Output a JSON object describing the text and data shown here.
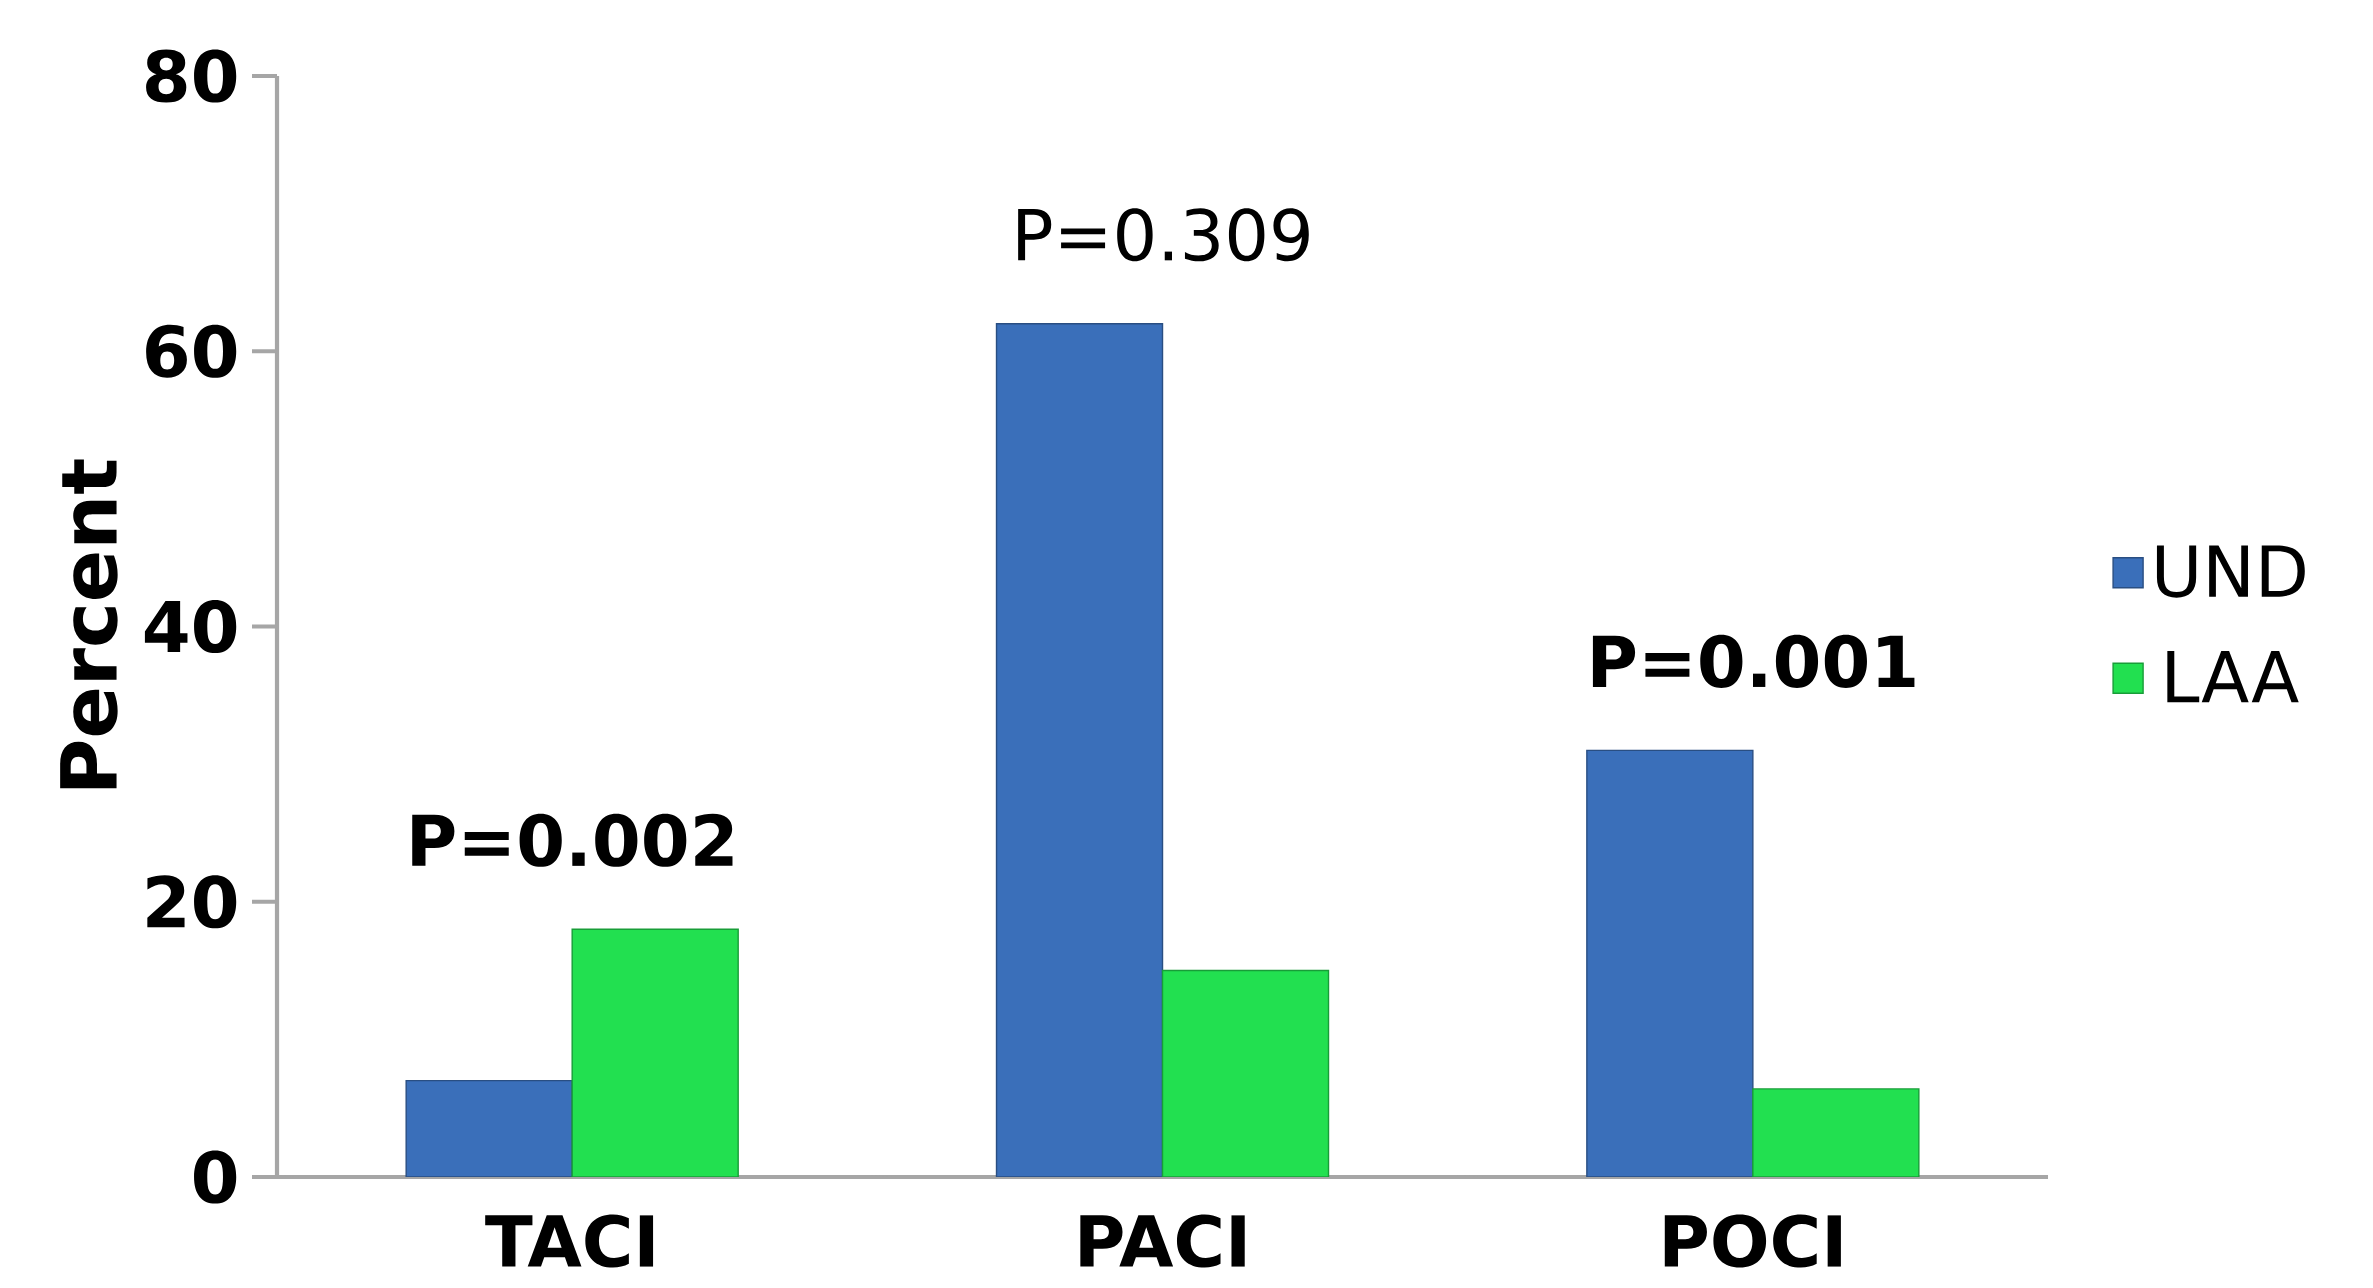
{
  "chart_data": {
    "type": "bar",
    "ylabel": "Percent",
    "categories": [
      "TACI",
      "PACI",
      "POCI"
    ],
    "series": [
      {
        "name": "UND",
        "color": "#3a6fba",
        "values": [
          7,
          62,
          31
        ]
      },
      {
        "name": "LAA",
        "color": "#22e050",
        "values": [
          18,
          15,
          6.4
        ]
      }
    ],
    "ylim": [
      0,
      80
    ],
    "yticks": [
      0,
      20,
      40,
      60,
      80
    ],
    "grid": false,
    "legend": "right",
    "annotations": [
      "**P=0.002**",
      "P=0.309",
      "**P=0.001**"
    ]
  }
}
